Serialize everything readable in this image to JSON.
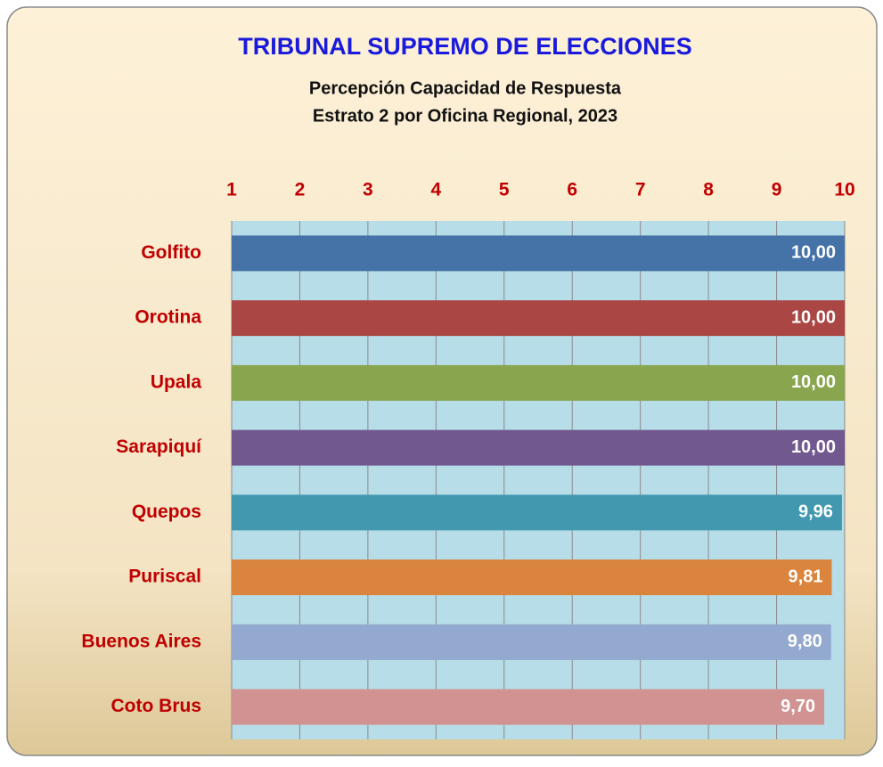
{
  "chart_data": {
    "type": "bar",
    "orientation": "horizontal",
    "title": "TRIBUNAL SUPREMO DE ELECCIONES",
    "subtitle": [
      "Percepción Capacidad de  Respuesta",
      "Estrato 2 por Oficina Regional, 2023"
    ],
    "categories": [
      "Golfito",
      "Orotina",
      "Upala",
      "Sarapiquí",
      "Quepos",
      "Puriscal",
      "Buenos Aires",
      "Coto Brus"
    ],
    "values": [
      10.0,
      10.0,
      10.0,
      10.0,
      9.96,
      9.81,
      9.8,
      9.7
    ],
    "value_labels": [
      "10,00",
      "10,00",
      "10,00",
      "10,00",
      "9,96",
      "9,81",
      "9,80",
      "9,70"
    ],
    "colors": [
      "#4572a7",
      "#aa4643",
      "#89a54e",
      "#71588f",
      "#4198af",
      "#db843d",
      "#93a9cf",
      "#d19392"
    ],
    "xlim": [
      1,
      10
    ],
    "xticks": [
      1,
      2,
      3,
      4,
      5,
      6,
      7,
      8,
      9,
      10
    ],
    "grid": true
  }
}
